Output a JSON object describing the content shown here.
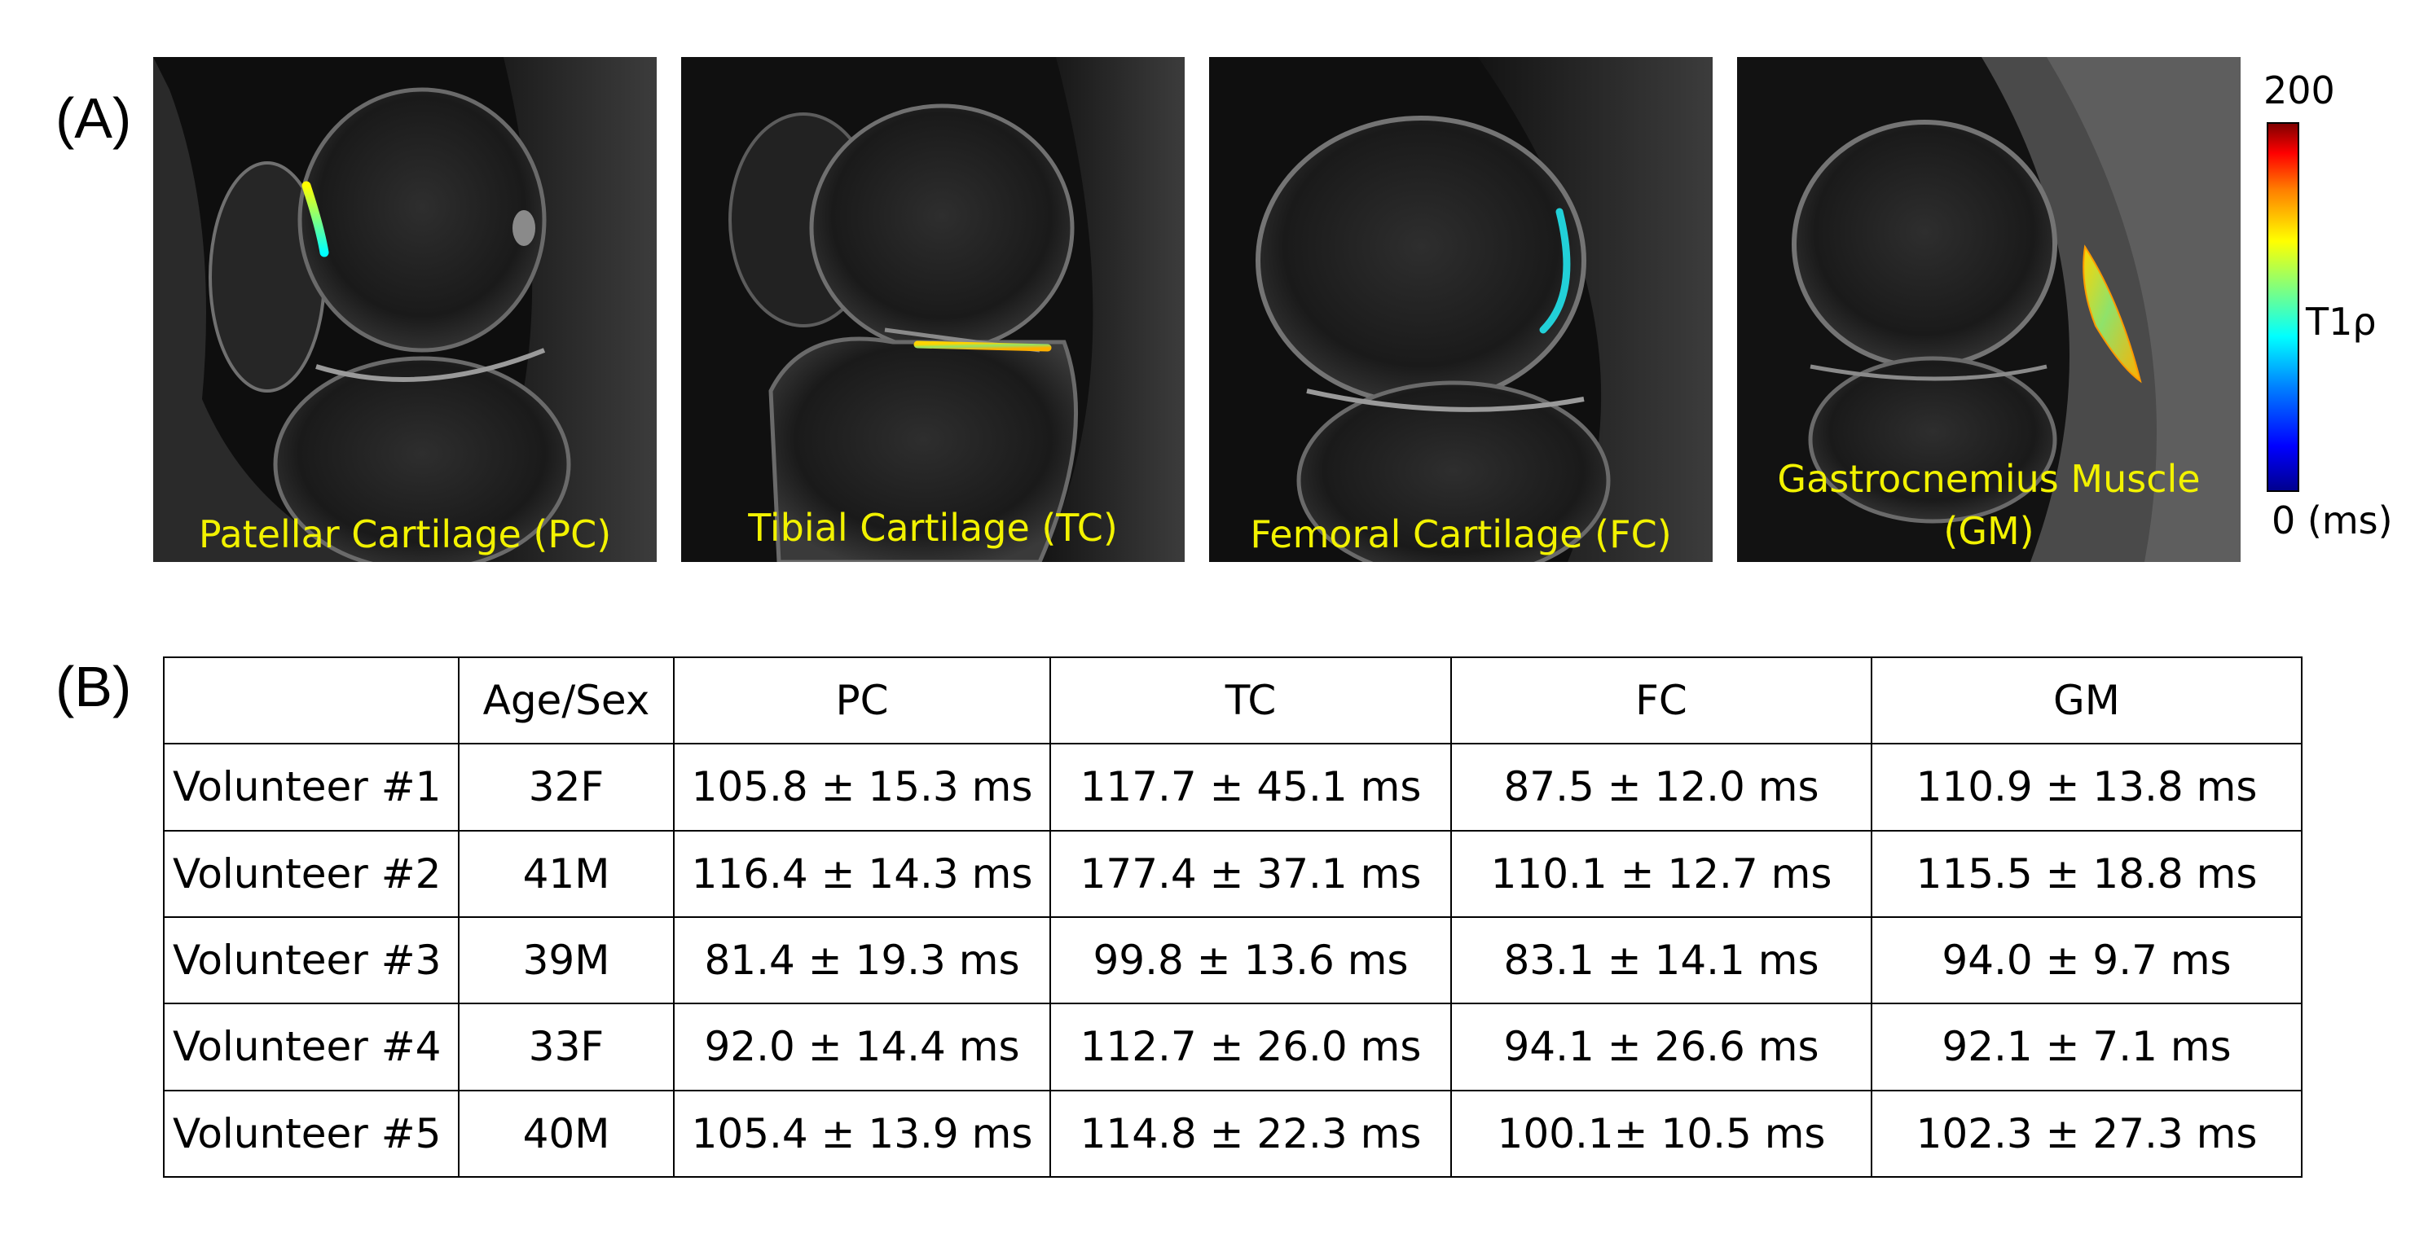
{
  "panel_a": {
    "label": "(A)",
    "images": [
      {
        "caption": "Patellar Cartilage (PC)"
      },
      {
        "caption": "Tibial Cartilage (TC)"
      },
      {
        "caption": "Femoral Cartilage (FC)"
      },
      {
        "caption_line1": "Gastrocnemius Muscle",
        "caption_line2": "(GM)"
      }
    ],
    "colorbar": {
      "max": "200",
      "label": "T1ρ",
      "min": "0 (ms)"
    }
  },
  "panel_b": {
    "label": "(B)",
    "headers": [
      "",
      "Age/Sex",
      "PC",
      "TC",
      "FC",
      "GM"
    ],
    "rows": [
      [
        "Volunteer #1",
        "32F",
        "105.8 ± 15.3 ms",
        "117.7 ± 45.1 ms",
        "87.5 ± 12.0 ms",
        "110.9 ± 13.8 ms"
      ],
      [
        "Volunteer #2",
        "41M",
        "116.4 ± 14.3 ms",
        "177.4 ± 37.1 ms",
        "110.1 ± 12.7 ms",
        "115.5 ± 18.8 ms"
      ],
      [
        "Volunteer #3",
        "39M",
        "81.4 ± 19.3 ms",
        "99.8 ± 13.6 ms",
        "83.1 ± 14.1 ms",
        "94.0 ± 9.7 ms"
      ],
      [
        "Volunteer #4",
        "33F",
        "92.0 ± 14.4 ms",
        "112.7 ± 26.0 ms",
        "94.1 ± 26.6 ms",
        "92.1 ± 7.1 ms"
      ],
      [
        "Volunteer #5",
        "40M",
        "105.4 ± 13.9 ms",
        "114.8 ± 22.3 ms",
        "100.1± 10.5 ms",
        "102.3 ± 27.3 ms"
      ]
    ]
  }
}
